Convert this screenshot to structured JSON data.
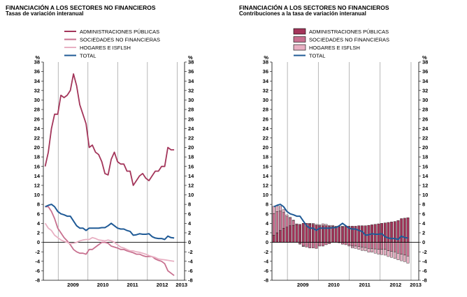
{
  "colors": {
    "admin": "#a3355a",
    "sociedades": "#c8708f",
    "hogares": "#e8b0c3",
    "total": "#1f5a96"
  },
  "chart_data": [
    {
      "type": "line",
      "title": "FINANCIACIÓN A LOS SECTORES NO FINANCIEROS",
      "subtitle": "Tasas de variación interanual",
      "unit_label": "%",
      "ylim": [
        -8,
        38
      ],
      "yticks": [
        -8,
        -6,
        -4,
        -2,
        0,
        2,
        4,
        6,
        8,
        10,
        12,
        14,
        16,
        18,
        20,
        22,
        24,
        26,
        28,
        30,
        32,
        34,
        36,
        38
      ],
      "xlim": [
        2008.5,
        2013.25
      ],
      "year_ticks": [
        "2009",
        "2010",
        "2011",
        "2012",
        "2013"
      ],
      "legend": [
        "ADMINISTRACIONES PÚBLICAS",
        "SOCIEDADES NO FINANCIERAS",
        "HOGARES E ISFLSH",
        "TOTAL"
      ],
      "series": [
        {
          "name": "ADMINISTRACIONES PÚBLICAS",
          "color_key": "admin",
          "values": [
            16,
            19,
            24,
            27,
            27,
            31,
            30.5,
            31,
            32,
            35.5,
            33,
            29,
            27,
            25,
            20,
            20.5,
            19,
            18.5,
            17,
            14.5,
            14.2,
            17.5,
            19,
            17,
            16.5,
            16.5,
            15,
            15,
            12,
            13,
            14,
            14.5,
            13.5,
            13,
            14,
            15,
            15,
            16,
            16,
            20,
            19.5,
            19.5
          ]
        },
        {
          "name": "SOCIEDADES NO FINANCIERAS",
          "color_key": "sociedades",
          "values": [
            7.5,
            7.5,
            6.5,
            5,
            3,
            2,
            1,
            0.3,
            -0.5,
            -1.5,
            -2,
            -2.3,
            -2.3,
            -2.5,
            -1.5,
            -1.5,
            -1,
            -0.5,
            0,
            0,
            -0.2,
            -0.8,
            -1,
            -1.2,
            -1.5,
            -1.5,
            -1.8,
            -2,
            -2.2,
            -2.5,
            -2.5,
            -2.8,
            -3,
            -3,
            -3,
            -3.5,
            -3.8,
            -4,
            -4.5,
            -6,
            -6.5,
            -7
          ]
        },
        {
          "name": "HOGARES E ISFLSH",
          "color_key": "hogares",
          "values": [
            4,
            3,
            2.5,
            1.5,
            1,
            0.5,
            0.2,
            0,
            -0.3,
            -0.2,
            0,
            0.3,
            0.5,
            0.6,
            0.6,
            1,
            0.8,
            0.5,
            0.4,
            0.3,
            0.5,
            0.3,
            0,
            -0.5,
            -1,
            -1.2,
            -1.5,
            -1.8,
            -1.8,
            -2,
            -2.1,
            -2.3,
            -2.5,
            -2.8,
            -3,
            -3.2,
            -3.5,
            -3.6,
            -3.7,
            -3.8,
            -3.9,
            -4
          ]
        },
        {
          "name": "TOTAL",
          "color_key": "total",
          "values": [
            7.5,
            7.8,
            8,
            7.5,
            6.5,
            6,
            5.8,
            5.5,
            5.5,
            4.5,
            3.5,
            3,
            3,
            2.5,
            3,
            3,
            3,
            3,
            3.1,
            3.1,
            3.5,
            4,
            3.5,
            3,
            2.8,
            2.8,
            2.5,
            2.3,
            1.5,
            1.6,
            1.8,
            1.7,
            1.7,
            1.8,
            1.2,
            0.9,
            0.8,
            0.8,
            0.6,
            1.3,
            1,
            0.9
          ]
        }
      ]
    },
    {
      "type": "bar",
      "title": "FINANCIACIÓN A LOS SECTORES NO FINANCIEROS",
      "subtitle": "Contribuciones a la tasa de variación interanual",
      "unit_label": "%",
      "ylim": [
        -8,
        38
      ],
      "yticks": [
        -8,
        -6,
        -4,
        -2,
        0,
        2,
        4,
        6,
        8,
        10,
        12,
        14,
        16,
        18,
        20,
        22,
        24,
        26,
        28,
        30,
        32,
        34,
        36,
        38
      ],
      "xlim": [
        2008.5,
        2013.25
      ],
      "year_ticks": [
        "2009",
        "2010",
        "2011",
        "2012",
        "2013"
      ],
      "legend": [
        "ADMINISTRACIONES PÚBLICAS",
        "SOCIEDADES NO FINANCIERAS",
        "HOGARES E ISFLSH",
        "TOTAL"
      ],
      "stack": [
        {
          "name": "ADMINISTRACIONES PÚBLICAS",
          "color_key": "admin",
          "values": [
            1.5,
            2,
            2.5,
            3,
            3.2,
            3.5,
            3.6,
            3.7,
            3.8,
            4,
            4,
            3.9,
            3.8,
            3.6,
            3.5,
            3.5,
            3.5,
            3.4,
            3.4,
            3.3,
            3.3,
            3.3,
            3.4,
            3.4,
            3.4,
            3.4,
            3.5,
            3.5,
            3.5,
            3.6,
            3.7,
            3.8,
            3.9,
            4,
            4.1,
            4.2,
            4.3,
            4.4,
            4.6,
            5,
            5.1,
            5.2
          ]
        },
        {
          "name": "SOCIEDADES NO FINANCIERAS",
          "color_key": "sociedades",
          "values": [
            4.6,
            4.5,
            4.1,
            3.3,
            2.2,
            1.6,
            1.0,
            0.2,
            -0.3,
            -0.8,
            -1.0,
            -1.2,
            -1.2,
            -1.3,
            -0.8,
            -0.8,
            -0.5,
            -0.3,
            0,
            0,
            -0.1,
            -0.4,
            -0.5,
            -0.6,
            -0.8,
            -0.8,
            -0.9,
            -1.0,
            -1.1,
            -1.3,
            -1.3,
            -1.4,
            -1.5,
            -1.5,
            -1.5,
            -1.8,
            -1.9,
            -2.0,
            -2.3,
            -2.5,
            -2.7,
            -2.9
          ]
        },
        {
          "name": "HOGARES E ISFLSH",
          "color_key": "hogares",
          "values": [
            1.5,
            1.2,
            1.0,
            0.6,
            0.4,
            0.2,
            0.1,
            0,
            -0.1,
            -0.1,
            0,
            0.1,
            0.2,
            0.2,
            0.2,
            0.4,
            0.3,
            0.2,
            0.2,
            0.1,
            0.2,
            0.1,
            0,
            -0.2,
            -0.4,
            -0.5,
            -0.6,
            -0.7,
            -0.7,
            -0.8,
            -0.8,
            -0.9,
            -1.0,
            -1.1,
            -1.2,
            -1.2,
            -1.3,
            -1.4,
            -1.4,
            -1.4,
            -1.4,
            -1.5
          ]
        }
      ],
      "series": [
        {
          "name": "TOTAL",
          "color_key": "total",
          "values": [
            7.5,
            7.8,
            8,
            7.5,
            6.5,
            6,
            5.8,
            5.5,
            5.5,
            4.5,
            3.5,
            3,
            3,
            2.5,
            3,
            3,
            3,
            3,
            3.1,
            3.1,
            3.5,
            4,
            3.5,
            3,
            2.8,
            2.8,
            2.5,
            2.3,
            1.5,
            1.6,
            1.8,
            1.7,
            1.7,
            1.8,
            1.2,
            0.9,
            0.8,
            0.8,
            0.6,
            1.3,
            1,
            0.9
          ]
        }
      ]
    }
  ]
}
